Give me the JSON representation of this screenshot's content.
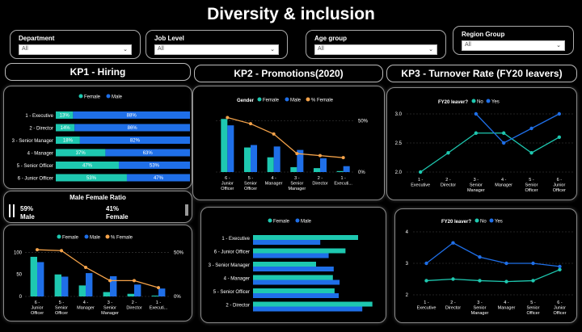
{
  "title": "Diversity & inclusion",
  "filters": [
    {
      "label": "Department",
      "value": "All"
    },
    {
      "label": "Job Level",
      "value": "All"
    },
    {
      "label": "Age group",
      "value": "All"
    },
    {
      "label": "Region Group",
      "value": "All"
    }
  ],
  "kp1_title": "KP1 - Hiring",
  "kp2_title": "KP2 - Promotions(2020)",
  "kp3_title": "KP3 - Turnover Rate (FY20 leavers)",
  "colors": {
    "female": "#1ec8b0",
    "male": "#1f6fe8",
    "pct": "#f5a34a"
  },
  "ratio": {
    "title": "Male Female Ratio",
    "male_pct": "59%",
    "male_label": "Male",
    "female_pct": "41%",
    "female_label": "Female"
  },
  "chart_data": [
    {
      "id": "hiring",
      "type": "bar",
      "orientation": "stacked-horizontal-100",
      "legend": [
        "Female",
        "Male"
      ],
      "categories": [
        "1 - Executive",
        "2 - Director",
        "3 - Senior Manager",
        "4 - Manager",
        "5 - Senior Officer",
        "6 - Junior Officer"
      ],
      "series": [
        {
          "name": "Female",
          "values": [
            13,
            14,
            18,
            37,
            47,
            53
          ],
          "labels": [
            "13%",
            "14%",
            "18%",
            "37%",
            "47%",
            "53%"
          ]
        },
        {
          "name": "Male",
          "values": [
            88,
            86,
            82,
            63,
            53,
            47
          ],
          "labels": [
            "88%",
            "86%",
            "82%",
            "63%",
            "53%",
            "47%"
          ]
        }
      ]
    },
    {
      "id": "hiring-combo",
      "type": "bar",
      "legend": [
        "Female",
        "Male",
        "% Female"
      ],
      "categories": [
        "6 - Junior Officer",
        "5 - Senior Officer",
        "4 - Manager",
        "3 - Senior Manager",
        "2 - Director",
        "1 - Executi..."
      ],
      "y_ticks": [
        "0",
        "50",
        "100"
      ],
      "ylim": [
        0,
        110
      ],
      "y2_ticks": [
        "0%",
        "50%"
      ],
      "y2lim": [
        0,
        0.55
      ],
      "series": [
        {
          "name": "Female",
          "values": [
            90,
            50,
            25,
            10,
            6,
            2
          ]
        },
        {
          "name": "Male",
          "values": [
            78,
            45,
            53,
            46,
            27,
            18
          ]
        },
        {
          "name": "% Female",
          "values": [
            0.53,
            0.52,
            0.33,
            0.18,
            0.18,
            0.1
          ]
        }
      ]
    },
    {
      "id": "promotions-combo",
      "type": "bar",
      "legend_title": "Gender",
      "legend": [
        "Female",
        "Male",
        "% Female"
      ],
      "categories": [
        "6 - Junior Officer",
        "5 - Senior Officer",
        "4 - Manager",
        "3 - Senior Manager",
        "2 - Director",
        "1 - Executi..."
      ],
      "y2_ticks": [
        "0%",
        "50%"
      ],
      "ylim": [
        0,
        115
      ],
      "y2lim": [
        0,
        0.55
      ],
      "series": [
        {
          "name": "Female",
          "values": [
            108,
            50,
            30,
            10,
            8,
            2
          ]
        },
        {
          "name": "Male",
          "values": [
            95,
            55,
            52,
            45,
            28,
            12
          ]
        },
        {
          "name": "% Female",
          "values": [
            0.53,
            0.47,
            0.37,
            0.18,
            0.16,
            0.14
          ]
        }
      ]
    },
    {
      "id": "promotions-hbar",
      "type": "bar",
      "orientation": "horizontal",
      "legend": [
        "Female",
        "Male"
      ],
      "categories": [
        "1 - Executive",
        "6 - Junior Officer",
        "3 - Senior Manager",
        "4 - Manager",
        "5 - Senior Officer",
        "2 - Director"
      ],
      "xlim": [
        0,
        150
      ],
      "series": [
        {
          "name": "Female",
          "values": [
            125,
            110,
            75,
            95,
            97,
            142
          ]
        },
        {
          "name": "Male",
          "values": [
            80,
            90,
            96,
            103,
            102,
            130
          ]
        }
      ]
    },
    {
      "id": "turnover-1",
      "type": "line",
      "legend_title": "FY20 leaver?",
      "legend": [
        "No",
        "Yes"
      ],
      "categories": [
        "1 - Executive",
        "2 - Director",
        "3 - Senior Manager",
        "4 - Manager",
        "5 - Senior Officer",
        "6 - Junior Officer"
      ],
      "y_ticks": [
        "2.0",
        "2.5",
        "3.0"
      ],
      "ylim": [
        2.0,
        3.0
      ],
      "series": [
        {
          "name": "No",
          "values": [
            2.0,
            2.33,
            2.67,
            2.67,
            2.33,
            2.6
          ]
        },
        {
          "name": "Yes",
          "values": [
            null,
            null,
            3.0,
            2.5,
            2.75,
            3.0
          ]
        }
      ]
    },
    {
      "id": "turnover-2",
      "type": "line",
      "legend_title": "FY20 leaver?",
      "legend": [
        "No",
        "Yes"
      ],
      "categories": [
        "1 - Executive",
        "2 - Director",
        "3 - Senior Manager",
        "4 - Manager",
        "5 - Senior Officer",
        "6 - Junior Officer"
      ],
      "y_ticks": [
        "2",
        "3",
        "4"
      ],
      "ylim": [
        2,
        4
      ],
      "series": [
        {
          "name": "No",
          "values": [
            2.45,
            2.5,
            2.45,
            2.42,
            2.45,
            2.8
          ]
        },
        {
          "name": "Yes",
          "values": [
            3.0,
            3.65,
            3.2,
            3.0,
            3.0,
            2.9
          ]
        }
      ]
    }
  ]
}
